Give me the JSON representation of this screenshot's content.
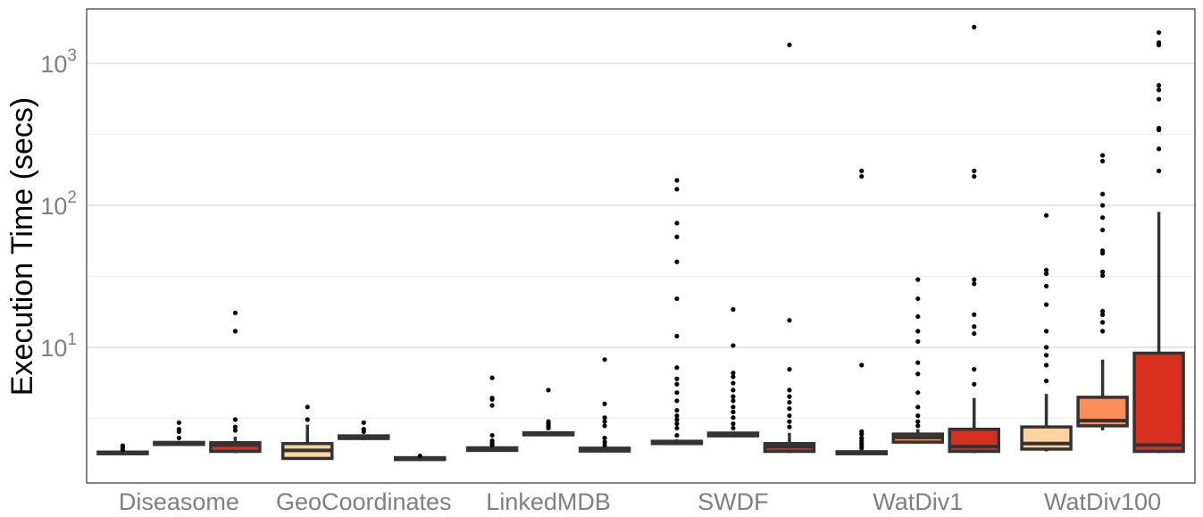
{
  "chart_data": {
    "type": "boxplot",
    "ylabel": "Execution Time (secs)",
    "xlabel": "",
    "yscale": "log10",
    "ylim": [
      1.0,
      2300
    ],
    "ytick_labels": [
      {
        "value": 10,
        "base": "10",
        "exp": "1"
      },
      {
        "value": 100,
        "base": "10",
        "exp": "2"
      },
      {
        "value": 1000,
        "base": "10",
        "exp": "3"
      }
    ],
    "grid": true,
    "colors": [
      "#fdd49e",
      "#fc8d59",
      "#d7301f"
    ],
    "categories": [
      "Diseasome",
      "GeoCoordinates",
      "LinkedMDB",
      "SWDF",
      "WatDiv1",
      "WatDiv100"
    ],
    "groups": [
      {
        "category": "Diseasome",
        "boxes": [
          {
            "q1": 1.78,
            "median": 1.8,
            "q3": 1.83,
            "whisker_low": 1.75,
            "whisker_high": 1.86,
            "outliers": [
              1.9,
              1.98,
              2.03
            ]
          },
          {
            "q1": 2.07,
            "median": 2.1,
            "q3": 2.14,
            "whisker_low": 2.03,
            "whisker_high": 2.18,
            "outliers": [
              2.3,
              2.55,
              2.65,
              2.95
            ]
          },
          {
            "q1": 1.85,
            "median": 2.05,
            "q3": 2.13,
            "whisker_low": 1.8,
            "whisker_high": 2.35,
            "outliers": [
              2.6,
              2.75,
              3.1,
              13,
              17.5
            ]
          }
        ]
      },
      {
        "category": "GeoCoordinates",
        "boxes": [
          {
            "q1": 1.65,
            "median": 1.88,
            "q3": 2.1,
            "whisker_low": 1.62,
            "whisker_high": 2.85,
            "outliers": [
              3.1,
              3.8
            ]
          },
          {
            "q1": 2.28,
            "median": 2.32,
            "q3": 2.38,
            "whisker_low": 2.22,
            "whisker_high": 2.44,
            "outliers": [
              2.55,
              2.65,
              2.95
            ]
          },
          {
            "q1": 1.62,
            "median": 1.64,
            "q3": 1.67,
            "whisker_low": 1.6,
            "whisker_high": 1.7,
            "outliers": [
              1.72
            ]
          }
        ]
      },
      {
        "category": "LinkedMDB",
        "boxes": [
          {
            "q1": 1.88,
            "median": 1.92,
            "q3": 1.96,
            "whisker_low": 1.84,
            "whisker_high": 2.0,
            "outliers": [
              2.05,
              2.12,
              2.2,
              2.4,
              3.9,
              4.3,
              4.4,
              6.1
            ]
          },
          {
            "q1": 2.42,
            "median": 2.45,
            "q3": 2.5,
            "whisker_low": 2.38,
            "whisker_high": 2.55,
            "outliers": [
              2.7,
              2.8,
              2.9,
              3.0,
              5.0
            ]
          },
          {
            "q1": 1.86,
            "median": 1.9,
            "q3": 1.95,
            "whisker_low": 1.82,
            "whisker_high": 1.99,
            "outliers": [
              2.05,
              2.15,
              2.3,
              2.8,
              3.0,
              3.2,
              4.0,
              8.2
            ]
          }
        ]
      },
      {
        "category": "SWDF",
        "boxes": [
          {
            "q1": 2.1,
            "median": 2.14,
            "q3": 2.18,
            "whisker_low": 2.05,
            "whisker_high": 2.25,
            "outliers": [
              2.4,
              2.7,
              2.9,
              3.1,
              3.3,
              3.6,
              4.2,
              4.8,
              5.5,
              6.0,
              7.2,
              12,
              22,
              40,
              60,
              75,
              130,
              150
            ]
          },
          {
            "q1": 2.38,
            "median": 2.43,
            "q3": 2.49,
            "whisker_low": 2.32,
            "whisker_high": 2.55,
            "outliers": [
              2.7,
              2.9,
              3.2,
              3.5,
              3.8,
              4.2,
              4.5,
              5.0,
              5.6,
              6.2,
              6.6,
              10.3,
              18.5
            ]
          },
          {
            "q1": 1.85,
            "median": 2.0,
            "q3": 2.1,
            "whisker_low": 1.8,
            "whisker_high": 2.5,
            "outliers": [
              2.75,
              3.0,
              3.3,
              3.7,
              4.1,
              4.5,
              5.0,
              7.0,
              15.5,
              1350
            ]
          }
        ]
      },
      {
        "category": "WatDiv1",
        "boxes": [
          {
            "q1": 1.78,
            "median": 1.81,
            "q3": 1.84,
            "whisker_low": 1.75,
            "whisker_high": 1.88,
            "outliers": [
              1.95,
              2.02,
              2.1,
              2.2,
              2.3,
              2.45,
              2.55,
              7.5,
              160,
              175
            ]
          },
          {
            "q1": 2.15,
            "median": 2.32,
            "q3": 2.45,
            "whisker_low": 2.1,
            "whisker_high": 2.65,
            "outliers": [
              2.8,
              3.0,
              3.3,
              3.8,
              4.8,
              6.5,
              7.8,
              11,
              13,
              16.5,
              22,
              30
            ]
          },
          {
            "q1": 1.85,
            "median": 2.0,
            "q3": 2.65,
            "whisker_low": 1.8,
            "whisker_high": 4.4,
            "outliers": [
              5.5,
              7.0,
              12.5,
              14,
              17,
              28,
              30,
              160,
              175,
              1800
            ]
          }
        ]
      },
      {
        "category": "WatDiv100",
        "boxes": [
          {
            "q1": 1.92,
            "median": 2.1,
            "q3": 2.75,
            "whisker_low": 1.85,
            "whisker_high": 4.7,
            "outliers": [
              5.8,
              7.5,
              8.8,
              10,
              13,
              20,
              27,
              33,
              35,
              85
            ]
          },
          {
            "q1": 2.8,
            "median": 3.05,
            "q3": 4.45,
            "whisker_low": 2.6,
            "whisker_high": 8.2,
            "outliers": [
              13,
              15,
              17,
              18,
              32,
              34,
              46,
              48,
              67,
              82,
              100,
              120,
              205,
              225
            ]
          },
          {
            "q1": 1.85,
            "median": 2.05,
            "q3": 9.1,
            "whisker_low": 1.8,
            "whisker_high": 90,
            "outliers": [
              175,
              250,
              340,
              350,
              560,
              650,
              700,
              1350,
              1400,
              1650
            ]
          }
        ]
      }
    ]
  }
}
